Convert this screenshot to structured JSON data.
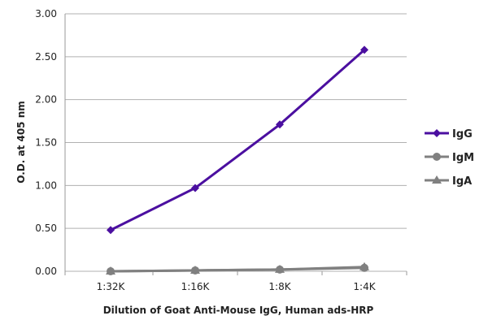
{
  "chart_data": {
    "type": "line",
    "title": "",
    "xlabel": "Dilution of Goat Anti-Mouse IgG, Human ads-HRP",
    "ylabel": "O.D. at 405 nm",
    "categories": [
      "1:32K",
      "1:16K",
      "1:8K",
      "1:4K"
    ],
    "ylim": [
      0,
      3
    ],
    "yticks": [
      "0.00",
      "0.50",
      "1.00",
      "1.50",
      "2.00",
      "2.50",
      "3.00"
    ],
    "grid": true,
    "legend": "right",
    "series": [
      {
        "name": "IgG",
        "values": [
          0.48,
          0.97,
          1.71,
          2.58
        ],
        "color": "#4b0fa0",
        "marker": "diamond"
      },
      {
        "name": "IgM",
        "values": [
          0.0,
          0.01,
          0.02,
          0.04
        ],
        "color": "#808080",
        "marker": "circle"
      },
      {
        "name": "IgA",
        "values": [
          0.0,
          0.01,
          0.02,
          0.05
        ],
        "color": "#808080",
        "marker": "triangle"
      }
    ]
  }
}
